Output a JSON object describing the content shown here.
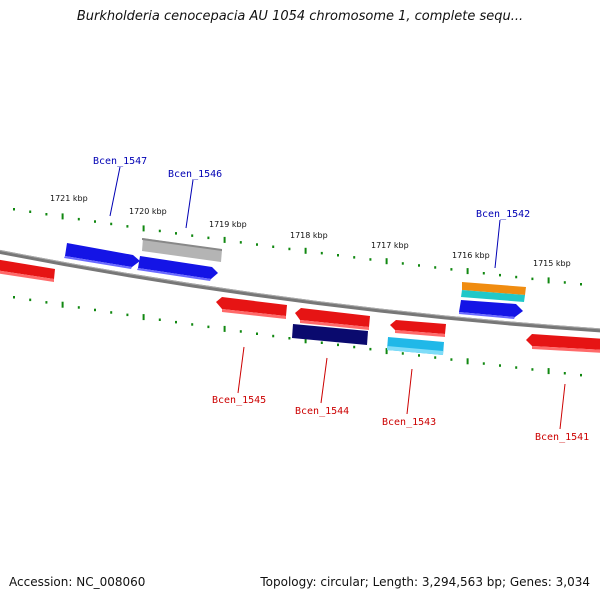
{
  "title": "Burkholderia cenocepacia AU 1054 chromosome 1, complete sequ...",
  "footer": {
    "accession": "Accession: NC_008060",
    "summary": "Topology: circular; Length: 3,294,563 bp; Genes: 3,034"
  },
  "colors": {
    "forward_gene": "#1414e6",
    "reverse_gene": "#e61414",
    "label_forward": "#0000b4",
    "label_reverse": "#cc0000",
    "ticks": "#118811",
    "backbone": "#777777"
  },
  "kbp_labels": [
    "1721 kbp",
    "1720 kbp",
    "1719 kbp",
    "1718 kbp",
    "1717 kbp",
    "1716 kbp",
    "1715 kbp"
  ],
  "genes": [
    {
      "label": "Bcen_1547",
      "strand": "forward",
      "color": "#1414e6"
    },
    {
      "label": "Bcen_1546",
      "strand": "forward",
      "color": "#1414e6"
    },
    {
      "label": "Bcen_1542",
      "strand": "forward",
      "color": "#1414e6"
    },
    {
      "label": "Bcen_1545",
      "strand": "reverse",
      "color": "#e61414"
    },
    {
      "label": "Bcen_1544",
      "strand": "reverse",
      "color": "#e61414"
    },
    {
      "label": "Bcen_1543",
      "strand": "reverse",
      "color": "#e61414"
    },
    {
      "label": "Bcen_1541",
      "strand": "reverse",
      "color": "#e61414"
    }
  ],
  "features": {
    "grey_bar": "#b4b4b4",
    "navy_bar": "#0a0a6e",
    "cyan_bar": "#20b8e8",
    "orange_bar": "#f08c10",
    "teal_bar": "#20c8c8"
  }
}
